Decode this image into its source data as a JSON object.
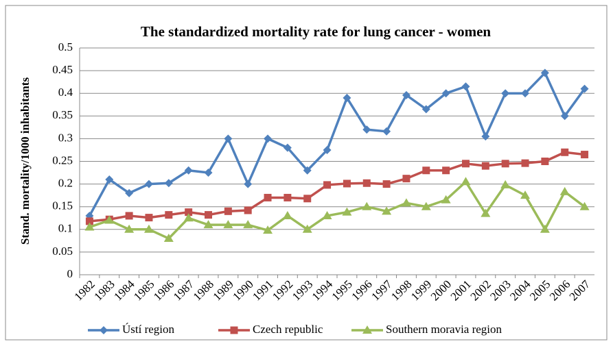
{
  "chart_data": {
    "type": "line",
    "title": "The standardized mortality rate for lung cancer - women",
    "y_label": "Stand. mortality/1000 inhabitants",
    "categories": [
      "1982",
      "1983",
      "1984",
      "1985",
      "1986",
      "1987",
      "1988",
      "1989",
      "1990",
      "1991",
      "1992",
      "1993",
      "1994",
      "1995",
      "1996",
      "1997",
      "1998",
      "1999",
      "2000",
      "2001",
      "2002",
      "2003",
      "2004",
      "2005",
      "2006",
      "2007"
    ],
    "series": [
      {
        "name": "Ústí region",
        "color": "#4f81bd",
        "marker": "diamond",
        "values": [
          0.13,
          0.21,
          0.18,
          0.2,
          0.202,
          0.23,
          0.225,
          0.3,
          0.2,
          0.3,
          0.28,
          0.23,
          0.275,
          0.39,
          0.32,
          0.316,
          0.396,
          0.365,
          0.4,
          0.415,
          0.305,
          0.4,
          0.4,
          0.445,
          0.35,
          0.41
        ]
      },
      {
        "name": "Czech republic",
        "color": "#c0504d",
        "marker": "square",
        "values": [
          0.118,
          0.122,
          0.13,
          0.126,
          0.132,
          0.138,
          0.132,
          0.14,
          0.142,
          0.17,
          0.17,
          0.168,
          0.198,
          0.201,
          0.202,
          0.2,
          0.212,
          0.23,
          0.23,
          0.245,
          0.24,
          0.245,
          0.246,
          0.25,
          0.27,
          0.265
        ]
      },
      {
        "name": "Southern moravia region",
        "color": "#9bbb59",
        "marker": "triangle",
        "values": [
          0.105,
          0.12,
          0.1,
          0.1,
          0.08,
          0.125,
          0.11,
          0.11,
          0.11,
          0.098,
          0.13,
          0.1,
          0.13,
          0.138,
          0.15,
          0.14,
          0.158,
          0.15,
          0.165,
          0.205,
          0.135,
          0.198,
          0.175,
          0.1,
          0.183,
          0.15
        ]
      }
    ],
    "ylim": [
      0,
      0.5
    ],
    "yticks": [
      0,
      0.05,
      0.1,
      0.15,
      0.2,
      0.25,
      0.3,
      0.35,
      0.4,
      0.45,
      0.5
    ],
    "grid": true,
    "legend": "bottom"
  }
}
